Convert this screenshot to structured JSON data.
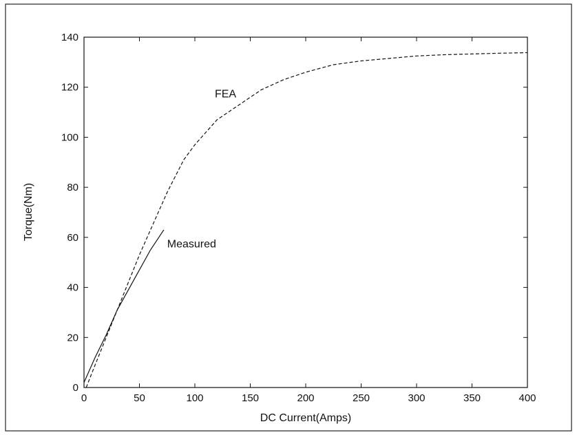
{
  "chart_data": {
    "type": "line",
    "title": "",
    "xlabel": "DC Current(Amps)",
    "ylabel": "Torque(Nm)",
    "xlim": [
      0,
      400
    ],
    "ylim": [
      0,
      140
    ],
    "xticks": [
      0,
      50,
      100,
      150,
      200,
      250,
      300,
      350,
      400
    ],
    "yticks": [
      0,
      20,
      40,
      60,
      80,
      100,
      120,
      140
    ],
    "grid": false,
    "legend": "none",
    "series": [
      {
        "label": "FEA",
        "style": "dashed",
        "x": [
          2,
          10,
          20,
          30,
          40,
          50,
          60,
          75,
          90,
          100,
          120,
          140,
          160,
          180,
          200,
          225,
          250,
          275,
          300,
          325,
          350,
          375,
          400
        ],
        "y": [
          0,
          9,
          20,
          31,
          42,
          53,
          63,
          78,
          91,
          97,
          107,
          113,
          119,
          123,
          126,
          129,
          130.5,
          131.5,
          132.5,
          133,
          133.3,
          133.6,
          133.8
        ]
      },
      {
        "label": "Measured",
        "style": "solid",
        "x": [
          0,
          10,
          20,
          30,
          40,
          50,
          60,
          72
        ],
        "y": [
          2,
          12,
          21,
          31,
          39,
          47,
          55,
          63
        ]
      }
    ],
    "annotations": [
      {
        "text": "FEA",
        "x": 118,
        "y": 116
      },
      {
        "text": "Measured",
        "x": 75,
        "y": 56
      }
    ]
  }
}
